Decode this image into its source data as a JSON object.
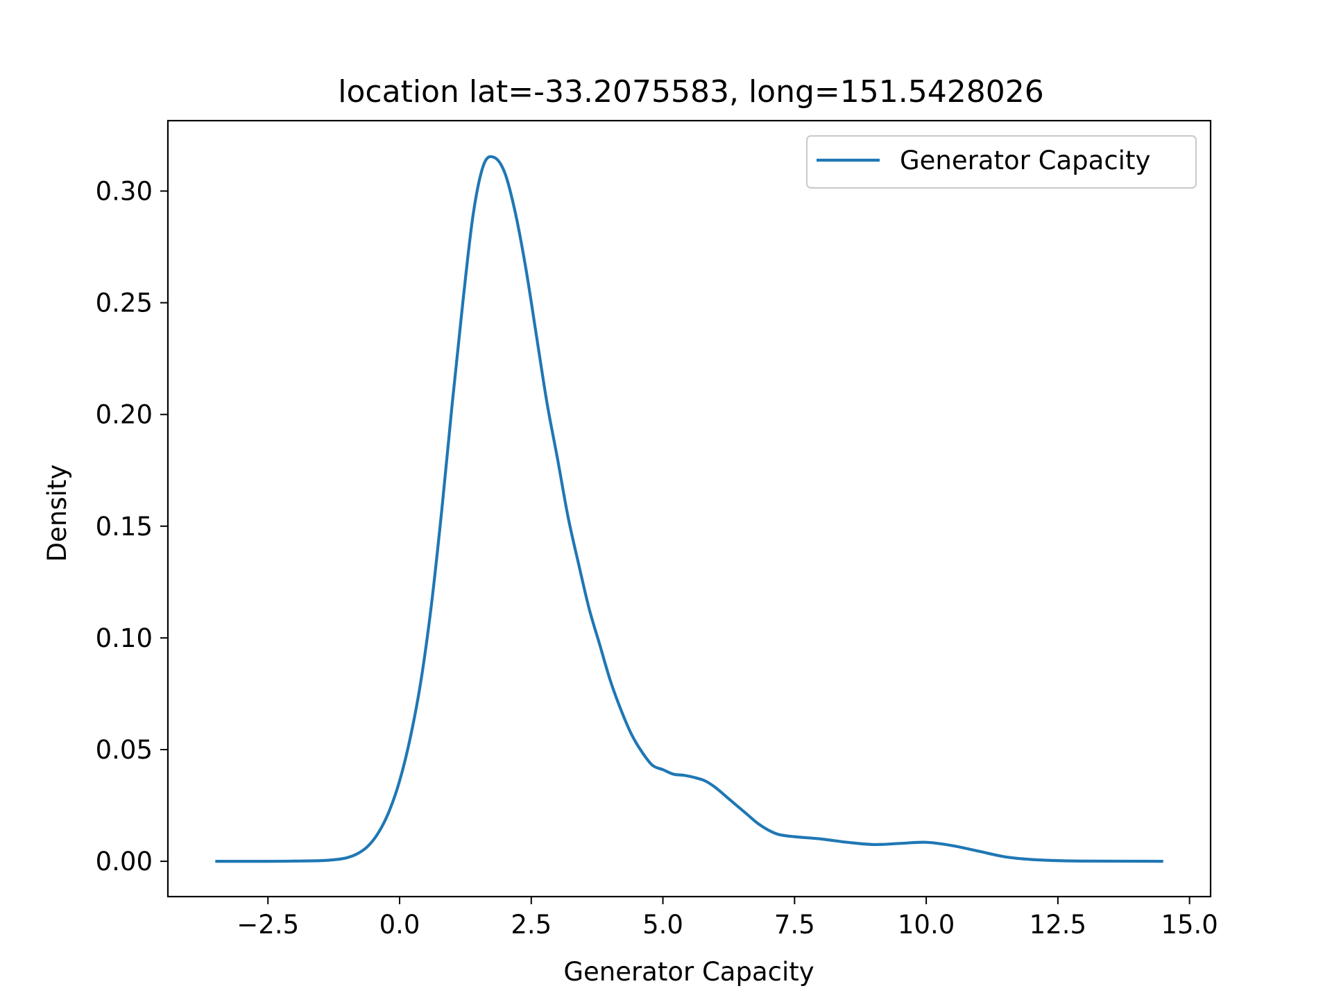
{
  "chart_data": {
    "type": "line",
    "title": "location lat=-33.2075583, long=151.5428026",
    "xlabel": "Generator Capacity",
    "ylabel": "Density",
    "xlim": [
      -4.4,
      15.4
    ],
    "ylim": [
      -0.0158,
      0.3315
    ],
    "xticks": [
      -2.5,
      0.0,
      2.5,
      5.0,
      7.5,
      10.0,
      12.5,
      15.0
    ],
    "xtick_labels": [
      "−2.5",
      "0.0",
      "2.5",
      "5.0",
      "7.5",
      "10.0",
      "12.5",
      "15.0"
    ],
    "yticks": [
      0.0,
      0.05,
      0.1,
      0.15,
      0.2,
      0.25,
      0.3
    ],
    "ytick_labels": [
      "0.00",
      "0.05",
      "0.10",
      "0.15",
      "0.20",
      "0.25",
      "0.30"
    ],
    "grid": false,
    "legend_position": "top-right",
    "series": [
      {
        "name": "Generator Capacity",
        "color": "#1f77b4",
        "x": [
          -3.5,
          -2.5,
          -2.0,
          -1.5,
          -1.2,
          -1.0,
          -0.8,
          -0.6,
          -0.4,
          -0.2,
          0.0,
          0.2,
          0.4,
          0.6,
          0.8,
          1.0,
          1.2,
          1.4,
          1.6,
          1.8,
          2.0,
          2.2,
          2.4,
          2.6,
          2.8,
          3.0,
          3.2,
          3.4,
          3.6,
          3.8,
          4.0,
          4.2,
          4.4,
          4.6,
          4.8,
          5.0,
          5.2,
          5.4,
          5.6,
          5.8,
          6.0,
          6.2,
          6.4,
          6.6,
          6.8,
          7.0,
          7.2,
          7.5,
          8.0,
          8.5,
          9.0,
          9.5,
          10.0,
          10.5,
          11.0,
          11.5,
          12.0,
          12.5,
          13.0,
          14.5
        ],
        "y": [
          0.0,
          0.0,
          0.0001,
          0.0003,
          0.0008,
          0.0016,
          0.0034,
          0.0068,
          0.0129,
          0.0223,
          0.036,
          0.055,
          0.08,
          0.114,
          0.157,
          0.205,
          0.25,
          0.29,
          0.312,
          0.315,
          0.308,
          0.29,
          0.265,
          0.235,
          0.205,
          0.18,
          0.154,
          0.133,
          0.113,
          0.097,
          0.081,
          0.068,
          0.057,
          0.049,
          0.043,
          0.041,
          0.039,
          0.0385,
          0.0375,
          0.036,
          0.033,
          0.029,
          0.025,
          0.021,
          0.017,
          0.014,
          0.012,
          0.011,
          0.01,
          0.0085,
          0.0075,
          0.008,
          0.0085,
          0.007,
          0.0045,
          0.002,
          0.0008,
          0.0003,
          0.0001,
          0.0
        ]
      }
    ]
  }
}
